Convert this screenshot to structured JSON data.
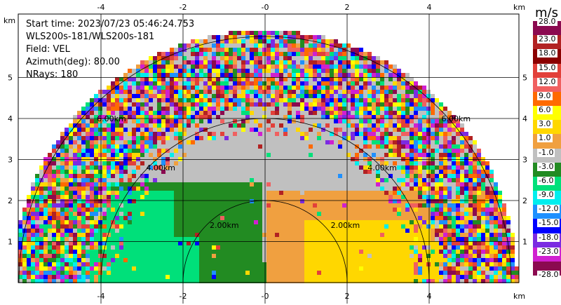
{
  "info": {
    "start_time": "Start time: 2023/07/23 05:46:24.753",
    "instrument": "WLS200s-181/WLS200s-181",
    "field": "Field: VEL",
    "azimuth": "Azimuth(deg): 80.00",
    "nrays": "NRays: 180"
  },
  "axes": {
    "x_ticks": [
      "-4",
      "-2",
      "-0",
      "2",
      "4"
    ],
    "y_ticks": [
      "1",
      "2",
      "3",
      "4",
      "5"
    ],
    "unit": "km"
  },
  "range_rings": [
    "2.00km",
    "4.00km",
    "6.00km"
  ],
  "colorbar": {
    "title": "m/s",
    "labels": [
      "28.0",
      "23.0",
      "18.0",
      "15.0",
      "12.0",
      "9.0",
      "6.0",
      "3.0",
      "1.0",
      "-1.0",
      "-3.0",
      "-6.0",
      "-9.0",
      "-12.0",
      "-15.0",
      "-18.0",
      "-23.0",
      "-28.0"
    ],
    "colors": [
      "#8b0a50",
      "#b22222",
      "#8b0000",
      "#e2403a",
      "#f06060",
      "#ff6a00",
      "#ffff00",
      "#ffd700",
      "#f0a040",
      "#c0c0c0",
      "#228b22",
      "#00e07a",
      "#00eeee",
      "#1e90ff",
      "#0000ff",
      "#7b2be2",
      "#d020d0",
      "#8b0a50"
    ]
  },
  "chart_data": {
    "type": "heatmap",
    "field": "VEL",
    "units": "m/s",
    "xlim": [
      -6,
      6
    ],
    "ylim": [
      0,
      6
    ],
    "rings_km": [
      2,
      4,
      6
    ]
  }
}
